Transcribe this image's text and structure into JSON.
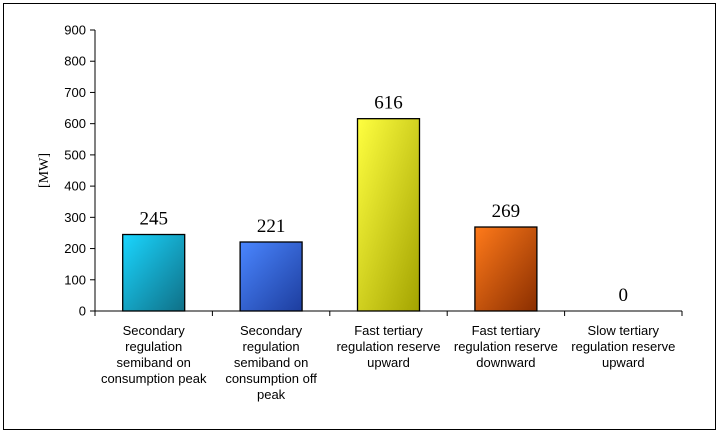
{
  "chart_data": {
    "type": "bar",
    "ylabel": "[MW]",
    "ylim": [
      0,
      900
    ],
    "yticks": [
      "0",
      "100",
      "200",
      "300",
      "400",
      "500",
      "600",
      "700",
      "800",
      "900"
    ],
    "grid": false,
    "legend": "none",
    "categories": [
      "Secondary regulation semiband on consumption peak",
      "Secondary regulation semiband on consumption off peak",
      "Fast tertiary regulation reserve upward",
      "Fast tertiary regulation reserve downward",
      "Slow tertiary regulation reserve upward"
    ],
    "category_lines": [
      [
        "Secondary",
        "regulation",
        "semiband on",
        "consumption peak"
      ],
      [
        "Secondary",
        "regulation",
        "semiband on",
        "consumption off",
        "peak"
      ],
      [
        "Fast tertiary",
        "regulation reserve",
        "upward"
      ],
      [
        "Fast tertiary",
        "regulation reserve",
        "downward"
      ],
      [
        "Slow tertiary",
        "regulation reserve",
        "upward"
      ]
    ],
    "values": [
      245,
      221,
      616,
      269,
      0
    ],
    "data_labels": [
      "245",
      "221",
      "616",
      "269",
      "0"
    ],
    "colors": [
      [
        "#1ad6ff",
        "#0f6f86"
      ],
      [
        "#4a86ff",
        "#1d3d9e"
      ],
      [
        "#ffff40",
        "#a3a300"
      ],
      [
        "#ff7a1a",
        "#8a2e00"
      ],
      [
        "#cccccc",
        "#888888"
      ]
    ]
  }
}
